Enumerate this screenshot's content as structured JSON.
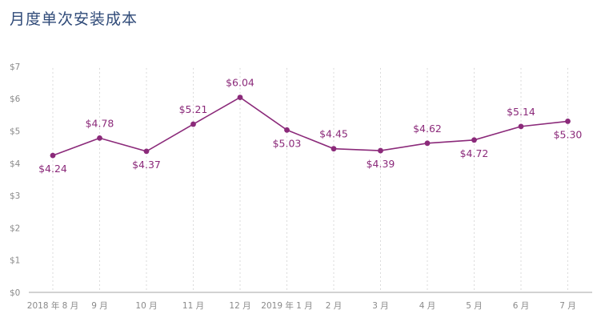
{
  "title": "月度单次安装成本",
  "colors": {
    "series": "#8b2a7a",
    "title": "#2f4a78",
    "tick": "#8a8a8a",
    "grid": "#d9d9d9",
    "axis": "#a6a6a6"
  },
  "chart_data": {
    "type": "line",
    "title": "月度单次安装成本",
    "xlabel": "",
    "ylabel": "",
    "categories": [
      "2018 年 8 月",
      "9 月",
      "10 月",
      "11 月",
      "12 月",
      "2019 年 1 月",
      "2 月",
      "3 月",
      "4 月",
      "5 月",
      "6 月",
      "7 月"
    ],
    "values": [
      4.24,
      4.78,
      4.37,
      5.21,
      6.04,
      5.03,
      4.45,
      4.39,
      4.62,
      4.72,
      5.14,
      5.3
    ],
    "data_labels": [
      "$4.24",
      "$4.78",
      "$4.37",
      "$5.21",
      "$6.04",
      "$5.03",
      "$4.45",
      "$4.39",
      "$4.62",
      "$4.72",
      "$5.14",
      "$5.30"
    ],
    "label_position": [
      "below",
      "above",
      "below",
      "above",
      "above",
      "below",
      "above",
      "below",
      "above",
      "below",
      "above",
      "below"
    ],
    "y_ticks": [
      0,
      1,
      2,
      3,
      4,
      5,
      6,
      7
    ],
    "y_tick_labels": [
      "$0",
      "$1",
      "$2",
      "$3",
      "$4",
      "$5",
      "$6",
      "$7"
    ],
    "ylim": [
      0,
      7
    ],
    "grid": "vertical-dotted",
    "legend": "none"
  }
}
